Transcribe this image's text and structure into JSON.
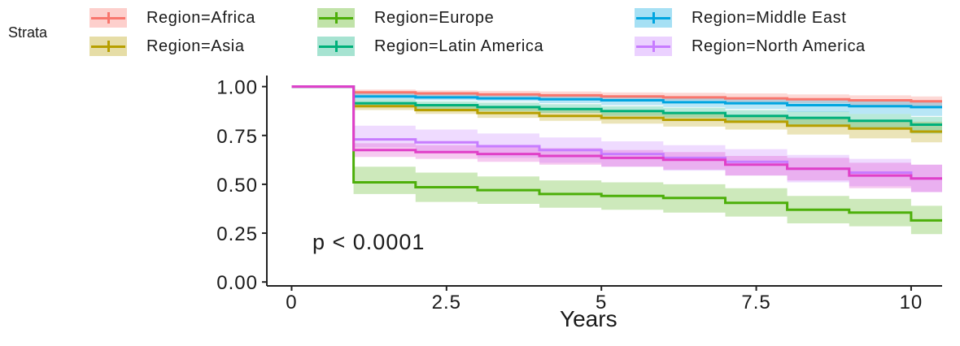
{
  "chart_data": {
    "type": "line",
    "subtype": "kaplan-meier step curves with confidence bands",
    "xlabel": "Years",
    "ylabel": "",
    "xlim": [
      -0.4,
      10.5
    ],
    "ylim": [
      -0.02,
      1.04
    ],
    "x_ticks": [
      0,
      2.5,
      5,
      7.5,
      10
    ],
    "x_tick_labels": [
      "0",
      "2.5",
      "5",
      "7.5",
      "10"
    ],
    "y_ticks": [
      0,
      0.25,
      0.5,
      0.75,
      1
    ],
    "y_tick_labels": [
      "0.00",
      "0.25",
      "0.50",
      "0.75",
      "1.00"
    ],
    "grid": false,
    "legend_title": "Strata",
    "legend_position": "top",
    "annotation": "p < 0.0001",
    "series": [
      {
        "name": "Region=Africa",
        "color": "#F8766D",
        "x": [
          0,
          1,
          2,
          3,
          4,
          5,
          6,
          7,
          8,
          9,
          10,
          10.5
        ],
        "y": [
          1.0,
          0.97,
          0.965,
          0.96,
          0.955,
          0.95,
          0.945,
          0.94,
          0.935,
          0.93,
          0.925,
          0.925
        ],
        "lower": [
          1.0,
          0.955,
          0.95,
          0.945,
          0.94,
          0.935,
          0.93,
          0.92,
          0.915,
          0.905,
          0.895,
          0.895
        ],
        "upper": [
          1.0,
          0.985,
          0.98,
          0.978,
          0.975,
          0.97,
          0.968,
          0.965,
          0.96,
          0.955,
          0.95,
          0.95
        ]
      },
      {
        "name": "Region=Asia",
        "color": "#B79F00",
        "x": [
          0,
          1,
          2,
          3,
          4,
          5,
          6,
          7,
          8,
          9,
          10,
          10.5
        ],
        "y": [
          1.0,
          0.9,
          0.88,
          0.865,
          0.85,
          0.84,
          0.83,
          0.82,
          0.8,
          0.785,
          0.77,
          0.77
        ],
        "lower": [
          1.0,
          0.88,
          0.86,
          0.84,
          0.825,
          0.81,
          0.795,
          0.78,
          0.755,
          0.735,
          0.715,
          0.715
        ],
        "upper": [
          1.0,
          0.92,
          0.905,
          0.89,
          0.878,
          0.868,
          0.86,
          0.855,
          0.84,
          0.83,
          0.82,
          0.82
        ]
      },
      {
        "name": "Region=Europe",
        "color": "#4DAF0A",
        "x": [
          0,
          1,
          2,
          3,
          4,
          5,
          6,
          7,
          8,
          9,
          10,
          10.5
        ],
        "y": [
          1.0,
          0.51,
          0.485,
          0.47,
          0.45,
          0.44,
          0.43,
          0.405,
          0.37,
          0.355,
          0.315,
          0.315
        ],
        "lower": [
          1.0,
          0.45,
          0.41,
          0.4,
          0.38,
          0.37,
          0.355,
          0.335,
          0.3,
          0.285,
          0.245,
          0.245
        ],
        "upper": [
          1.0,
          0.59,
          0.56,
          0.54,
          0.52,
          0.51,
          0.5,
          0.48,
          0.44,
          0.425,
          0.39,
          0.39
        ]
      },
      {
        "name": "Region=Latin America",
        "color": "#00B07A",
        "x": [
          0,
          1,
          2,
          3,
          4,
          5,
          6,
          7,
          8,
          9,
          10,
          10.5
        ],
        "y": [
          1.0,
          0.915,
          0.905,
          0.895,
          0.885,
          0.875,
          0.865,
          0.85,
          0.84,
          0.825,
          0.805,
          0.805
        ],
        "lower": [
          1.0,
          0.9,
          0.885,
          0.875,
          0.865,
          0.85,
          0.84,
          0.82,
          0.805,
          0.785,
          0.76,
          0.76
        ],
        "upper": [
          1.0,
          0.935,
          0.925,
          0.918,
          0.91,
          0.9,
          0.892,
          0.88,
          0.872,
          0.86,
          0.845,
          0.845
        ]
      },
      {
        "name": "Region=Middle East",
        "color": "#00A5E0",
        "x": [
          0,
          1,
          2,
          3,
          4,
          5,
          6,
          7,
          8,
          9,
          10,
          10.5
        ],
        "y": [
          1.0,
          0.95,
          0.945,
          0.94,
          0.935,
          0.93,
          0.92,
          0.915,
          0.905,
          0.9,
          0.895,
          0.895
        ],
        "lower": [
          1.0,
          0.935,
          0.93,
          0.925,
          0.915,
          0.905,
          0.895,
          0.885,
          0.87,
          0.86,
          0.85,
          0.85
        ],
        "upper": [
          1.0,
          0.965,
          0.962,
          0.958,
          0.955,
          0.95,
          0.945,
          0.94,
          0.935,
          0.93,
          0.925,
          0.925
        ]
      },
      {
        "name": "Region=North America",
        "color": "#C77CFF",
        "x": [
          0,
          1,
          2,
          3,
          4,
          5,
          6,
          7,
          8,
          9,
          10,
          10.5
        ],
        "y": [
          1.0,
          0.73,
          0.715,
          0.695,
          0.675,
          0.655,
          0.635,
          0.615,
          0.58,
          0.56,
          0.53,
          0.53
        ],
        "lower": [
          1.0,
          0.69,
          0.66,
          0.635,
          0.61,
          0.59,
          0.57,
          0.545,
          0.51,
          0.49,
          0.46,
          0.46
        ],
        "upper": [
          1.0,
          0.8,
          0.78,
          0.76,
          0.74,
          0.72,
          0.7,
          0.68,
          0.65,
          0.63,
          0.6,
          0.6
        ]
      },
      {
        "name": "",
        "color": "#E040C8",
        "x": [
          0,
          1,
          2,
          3,
          4,
          5,
          6,
          7,
          8,
          9,
          10,
          10.5
        ],
        "y": [
          1.0,
          0.675,
          0.665,
          0.655,
          0.645,
          0.635,
          0.625,
          0.6,
          0.58,
          0.545,
          0.53,
          0.53
        ],
        "lower": [
          1.0,
          0.64,
          0.63,
          0.615,
          0.6,
          0.59,
          0.575,
          0.545,
          0.52,
          0.48,
          0.46,
          0.46
        ],
        "upper": [
          1.0,
          0.71,
          0.7,
          0.69,
          0.685,
          0.675,
          0.665,
          0.645,
          0.635,
          0.61,
          0.6,
          0.6
        ]
      }
    ]
  }
}
